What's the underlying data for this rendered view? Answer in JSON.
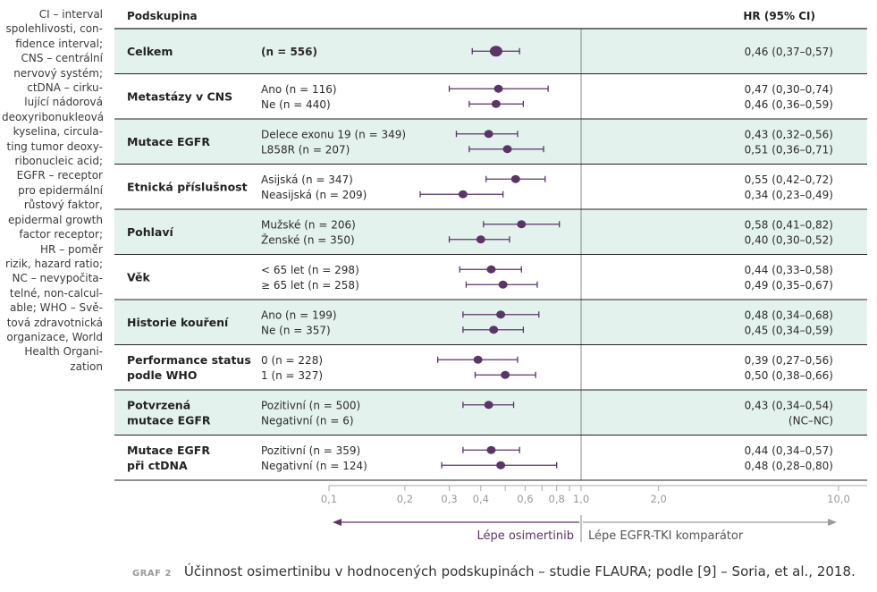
{
  "side_note": "CI – interval spolehlivosti, con-\nfidence interval;\nCNS – centrální\nnervový systém;\nctDNA – cirku-\nlující nádorová\ndeoxyribonukleová\nkyselina, circula-\nting tumor deoxy-\nribonucleic acid;\nEGFR – receptor\npro epidermální\nrůstový faktor,\nepidermal growth\nfactor receptor;\nHR – poměr\nrizik, hazard ratio;\nNC – nevypočita-\ntelné, non-calcul-\nable; WHO – Svě-\ntová zdravotnická\norganizace, World\nHealth Organi-\nzation",
  "header": {
    "subgroup_label": "Podskupina",
    "hr_label": "HR (95% CI)"
  },
  "axis": {
    "ticks": [
      0.1,
      0.2,
      0.3,
      0.4,
      0.5,
      0.6,
      0.7,
      0.8,
      0.9,
      1.0,
      2.0,
      10.0
    ],
    "tick_labels": [
      "0,1",
      "0,2",
      "0,3",
      "0,4",
      "",
      "0,6",
      "",
      "0,8",
      "",
      "1,0",
      "2,0",
      "10,0"
    ],
    "left_label": "Lépe osimertinib",
    "right_label": "Lépe EGFR-TKI komparátor"
  },
  "colors": {
    "accent": "#5a3566",
    "shade": "#e4f2ee",
    "grid": "#222222",
    "arrow_grey": "#9a9a9a"
  },
  "chart_data": {
    "type": "forest",
    "scale": "log",
    "reference_line": 1.0,
    "groups": [
      {
        "name": "Celkem",
        "rows": [
          {
            "label": "(n = 556)",
            "hr": 0.46,
            "lo": 0.37,
            "hi": 0.57,
            "text": "0,46 (0,37–0,57)"
          }
        ]
      },
      {
        "name": "Metastázy v CNS",
        "rows": [
          {
            "label": "Ano (n = 116)",
            "hr": 0.47,
            "lo": 0.3,
            "hi": 0.74,
            "text": "0,47 (0,30–0,74)"
          },
          {
            "label": "Ne (n = 440)",
            "hr": 0.46,
            "lo": 0.36,
            "hi": 0.59,
            "text": "0,46 (0,36–0,59)"
          }
        ]
      },
      {
        "name": "Mutace EGFR",
        "rows": [
          {
            "label": "Delece exonu 19 (n = 349)",
            "hr": 0.43,
            "lo": 0.32,
            "hi": 0.56,
            "text": "0,43 (0,32–0,56)"
          },
          {
            "label": "L858R (n = 207)",
            "hr": 0.51,
            "lo": 0.36,
            "hi": 0.71,
            "text": "0,51 (0,36–0,71)"
          }
        ]
      },
      {
        "name": "Etnická příslušnost",
        "rows": [
          {
            "label": "Asijská (n = 347)",
            "hr": 0.55,
            "lo": 0.42,
            "hi": 0.72,
            "text": "0,55 (0,42–0,72)"
          },
          {
            "label": "Neasijská (n = 209)",
            "hr": 0.34,
            "lo": 0.23,
            "hi": 0.49,
            "text": "0,34 (0,23–0,49)"
          }
        ]
      },
      {
        "name": "Pohlaví",
        "rows": [
          {
            "label": "Mužské (n = 206)",
            "hr": 0.58,
            "lo": 0.41,
            "hi": 0.82,
            "text": "0,58 (0,41–0,82)"
          },
          {
            "label": "Ženské (n = 350)",
            "hr": 0.4,
            "lo": 0.3,
            "hi": 0.52,
            "text": "0,40 (0,30–0,52)"
          }
        ]
      },
      {
        "name": "Věk",
        "rows": [
          {
            "label": "< 65 let (n = 298)",
            "hr": 0.44,
            "lo": 0.33,
            "hi": 0.58,
            "text": "0,44 (0,33–0,58)"
          },
          {
            "label": "≥ 65 let (n = 258)",
            "hr": 0.49,
            "lo": 0.35,
            "hi": 0.67,
            "text": "0,49 (0,35–0,67)"
          }
        ]
      },
      {
        "name": "Historie kouření",
        "rows": [
          {
            "label": "Ano (n = 199)",
            "hr": 0.48,
            "lo": 0.34,
            "hi": 0.68,
            "text": "0,48 (0,34–0,68)"
          },
          {
            "label": "Ne (n = 357)",
            "hr": 0.45,
            "lo": 0.34,
            "hi": 0.59,
            "text": "0,45 (0,34–0,59)"
          }
        ]
      },
      {
        "name": "Performance status\npodle WHO",
        "rows": [
          {
            "label": "0 (n = 228)",
            "hr": 0.39,
            "lo": 0.27,
            "hi": 0.56,
            "text": "0,39 (0,27–0,56)"
          },
          {
            "label": "1 (n = 327)",
            "hr": 0.5,
            "lo": 0.38,
            "hi": 0.66,
            "text": "0,50 (0,38–0,66)"
          }
        ]
      },
      {
        "name": "Potvrzená\nmutace EGFR",
        "rows": [
          {
            "label": "Pozitivní (n = 500)",
            "hr": 0.43,
            "lo": 0.34,
            "hi": 0.54,
            "text": "0,43 (0,34–0,54)"
          },
          {
            "label": "Negativní (n = 6)",
            "hr": null,
            "lo": null,
            "hi": null,
            "text": "(NC–NC)"
          }
        ]
      },
      {
        "name": "Mutace EGFR\npři ctDNA",
        "rows": [
          {
            "label": "Pozitivní (n = 359)",
            "hr": 0.44,
            "lo": 0.34,
            "hi": 0.57,
            "text": "0,44 (0,34–0,57)"
          },
          {
            "label": "Negativní (n = 124)",
            "hr": 0.48,
            "lo": 0.28,
            "hi": 0.8,
            "text": "0,48 (0,28–0,80)"
          }
        ]
      }
    ]
  },
  "caption": {
    "tag": "GRAF 2",
    "text": "Účinnost osimertinibu v hodnocených podskupinách – studie FLAURA; podle [9] – Soria, et al., 2018."
  }
}
